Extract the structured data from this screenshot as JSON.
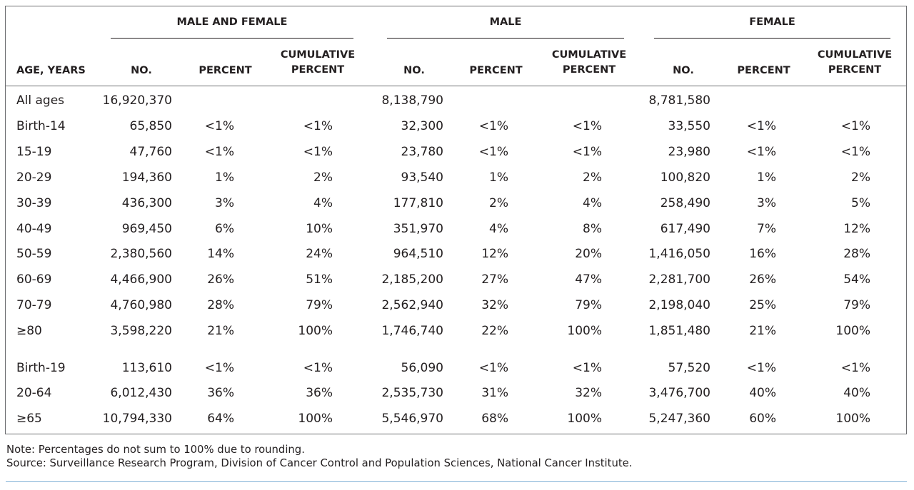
{
  "groups": [
    "MALE AND FEMALE",
    "MALE",
    "FEMALE"
  ],
  "columns": {
    "age": "AGE, YEARS",
    "no": "NO.",
    "percent": "PERCENT",
    "cum_line1": "CUMULATIVE",
    "cum_line2": "PERCENT"
  },
  "rows": [
    {
      "age": "All ages",
      "v": [
        "16,920,370",
        "",
        "",
        "8,138,790",
        "",
        "",
        "8,781,580",
        "",
        ""
      ]
    },
    {
      "age": "Birth-14",
      "v": [
        "65,850",
        "<1%",
        "<1%",
        "32,300",
        "<1%",
        "<1%",
        "33,550",
        "<1%",
        "<1%"
      ]
    },
    {
      "age": "15-19",
      "v": [
        "47,760",
        "<1%",
        "<1%",
        "23,780",
        "<1%",
        "<1%",
        "23,980",
        "<1%",
        "<1%"
      ]
    },
    {
      "age": "20-29",
      "v": [
        "194,360",
        "1%",
        "2%",
        "93,540",
        "1%",
        "2%",
        "100,820",
        "1%",
        "2%"
      ]
    },
    {
      "age": "30-39",
      "v": [
        "436,300",
        "3%",
        "4%",
        "177,810",
        "2%",
        "4%",
        "258,490",
        "3%",
        "5%"
      ]
    },
    {
      "age": "40-49",
      "v": [
        "969,450",
        "6%",
        "10%",
        "351,970",
        "4%",
        "8%",
        "617,490",
        "7%",
        "12%"
      ]
    },
    {
      "age": "50-59",
      "v": [
        "2,380,560",
        "14%",
        "24%",
        "964,510",
        "12%",
        "20%",
        "1,416,050",
        "16%",
        "28%"
      ]
    },
    {
      "age": "60-69",
      "v": [
        "4,466,900",
        "26%",
        "51%",
        "2,185,200",
        "27%",
        "47%",
        "2,281,700",
        "26%",
        "54%"
      ]
    },
    {
      "age": "70-79",
      "v": [
        "4,760,980",
        "28%",
        "79%",
        "2,562,940",
        "32%",
        "79%",
        "2,198,040",
        "25%",
        "79%"
      ]
    },
    {
      "age": "≥80",
      "v": [
        "3,598,220",
        "21%",
        "100%",
        "1,746,740",
        "22%",
        "100%",
        "1,851,480",
        "21%",
        "100%"
      ]
    },
    {
      "age": "Birth-19",
      "v": [
        "113,610",
        "<1%",
        "<1%",
        "56,090",
        "<1%",
        "<1%",
        "57,520",
        "<1%",
        "<1%"
      ]
    },
    {
      "age": "20-64",
      "v": [
        "6,012,430",
        "36%",
        "36%",
        "2,535,730",
        "31%",
        "32%",
        "3,476,700",
        "40%",
        "40%"
      ]
    },
    {
      "age": "≥65",
      "v": [
        "10,794,330",
        "64%",
        "100%",
        "5,546,970",
        "68%",
        "100%",
        "5,247,360",
        "60%",
        "100%"
      ]
    }
  ],
  "notes": {
    "note": "Note: Percentages do not sum to 100% due to rounding.",
    "source": "Source: Surveillance Research Program, Division of Cancer Control and Population Sciences, National Cancer Institute."
  }
}
